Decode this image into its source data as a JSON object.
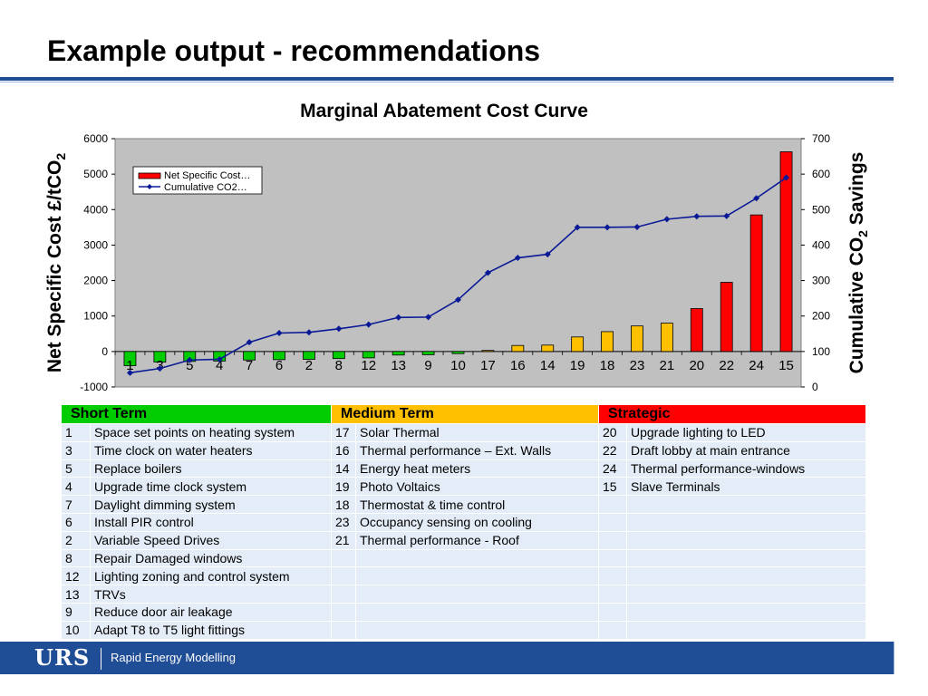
{
  "slide": {
    "title": "Example output - recommendations"
  },
  "chart_data": {
    "type": "bar",
    "title": "Marginal Abatement Cost Curve",
    "categories": [
      "1",
      "3",
      "5",
      "4",
      "7",
      "6",
      "2",
      "8",
      "12",
      "13",
      "9",
      "10",
      "17",
      "16",
      "14",
      "19",
      "18",
      "23",
      "21",
      "20",
      "22",
      "24",
      "15"
    ],
    "ylabel_left": "Net Specific Cost £/tCO",
    "ylabel_left_sub": "2",
    "ylabel_right": "Cumulative CO",
    "ylabel_right_sub": "2",
    "ylabel_right_tail": " Savings",
    "ylim_left": [
      -1000,
      6000
    ],
    "yticks_left": [
      -1000,
      0,
      1000,
      2000,
      3000,
      4000,
      5000,
      6000
    ],
    "ylim_right": [
      0,
      700
    ],
    "yticks_right": [
      0,
      100,
      200,
      300,
      400,
      500,
      600,
      700
    ],
    "grid": false,
    "legend_position": "top-left",
    "series": [
      {
        "name": "Net Specific Cost…",
        "kind": "bar",
        "axis": "left",
        "values": [
          -400,
          -300,
          -280,
          -270,
          -240,
          -230,
          -220,
          -200,
          -180,
          -100,
          -90,
          -60,
          30,
          170,
          180,
          410,
          560,
          720,
          800,
          1210,
          1950,
          3850,
          5630
        ],
        "colors": [
          "#00cc00",
          "#00cc00",
          "#00cc00",
          "#00cc00",
          "#00cc00",
          "#00cc00",
          "#00cc00",
          "#00cc00",
          "#00cc00",
          "#00cc00",
          "#00cc00",
          "#00cc00",
          "#ffc000",
          "#ffc000",
          "#ffc000",
          "#ffc000",
          "#ffc000",
          "#ffc000",
          "#ffc000",
          "#ff0000",
          "#ff0000",
          "#ff0000",
          "#ff0000"
        ]
      },
      {
        "name": "Cumulative CO2…",
        "kind": "line",
        "axis": "right",
        "color": "#0a1a96",
        "values": [
          40,
          52,
          76,
          78,
          126,
          152,
          154,
          164,
          176,
          196,
          197,
          246,
          322,
          364,
          374,
          450,
          450,
          451,
          473,
          481,
          482,
          532,
          590
        ]
      }
    ]
  },
  "table": {
    "headers": {
      "short": "Short Term",
      "medium": "Medium Term",
      "strategic": "Strategic"
    },
    "rows": [
      {
        "s_num": "1",
        "s_text": "Space set points on heating system",
        "m_num": "17",
        "m_text": "Solar Thermal",
        "t_num": "20",
        "t_text": "Upgrade lighting to LED"
      },
      {
        "s_num": "3",
        "s_text": "Time clock on water heaters",
        "m_num": "16",
        "m_text": "Thermal performance – Ext. Walls",
        "t_num": "22",
        "t_text": "Draft lobby at main entrance"
      },
      {
        "s_num": "5",
        "s_text": "Replace boilers",
        "m_num": "14",
        "m_text": "Energy heat meters",
        "t_num": "24",
        "t_text": "Thermal performance-windows"
      },
      {
        "s_num": "4",
        "s_text": "Upgrade time clock system",
        "m_num": "19",
        "m_text": "Photo Voltaics",
        "t_num": "15",
        "t_text": "Slave Terminals"
      },
      {
        "s_num": "7",
        "s_text": "Daylight dimming system",
        "m_num": "18",
        "m_text": "Thermostat & time control",
        "t_num": "",
        "t_text": ""
      },
      {
        "s_num": "6",
        "s_text": "Install PIR control",
        "m_num": "23",
        "m_text": "Occupancy sensing on cooling",
        "t_num": "",
        "t_text": ""
      },
      {
        "s_num": "2",
        "s_text": "Variable Speed Drives",
        "m_num": "21",
        "m_text": "Thermal performance - Roof",
        "t_num": "",
        "t_text": ""
      },
      {
        "s_num": "8",
        "s_text": "Repair Damaged windows",
        "m_num": "",
        "m_text": "",
        "t_num": "",
        "t_text": ""
      },
      {
        "s_num": "12",
        "s_text": "Lighting zoning and control system",
        "m_num": "",
        "m_text": "",
        "t_num": "",
        "t_text": ""
      },
      {
        "s_num": "13",
        "s_text": "TRVs",
        "m_num": "",
        "m_text": "",
        "t_num": "",
        "t_text": ""
      },
      {
        "s_num": "9",
        "s_text": "Reduce door air leakage",
        "m_num": "",
        "m_text": "",
        "t_num": "",
        "t_text": ""
      },
      {
        "s_num": "10",
        "s_text": "Adapt T8 to T5 light fittings",
        "m_num": "",
        "m_text": "",
        "t_num": "",
        "t_text": ""
      }
    ]
  },
  "footer": {
    "logo": "URS",
    "text": "Rapid Energy Modelling"
  }
}
